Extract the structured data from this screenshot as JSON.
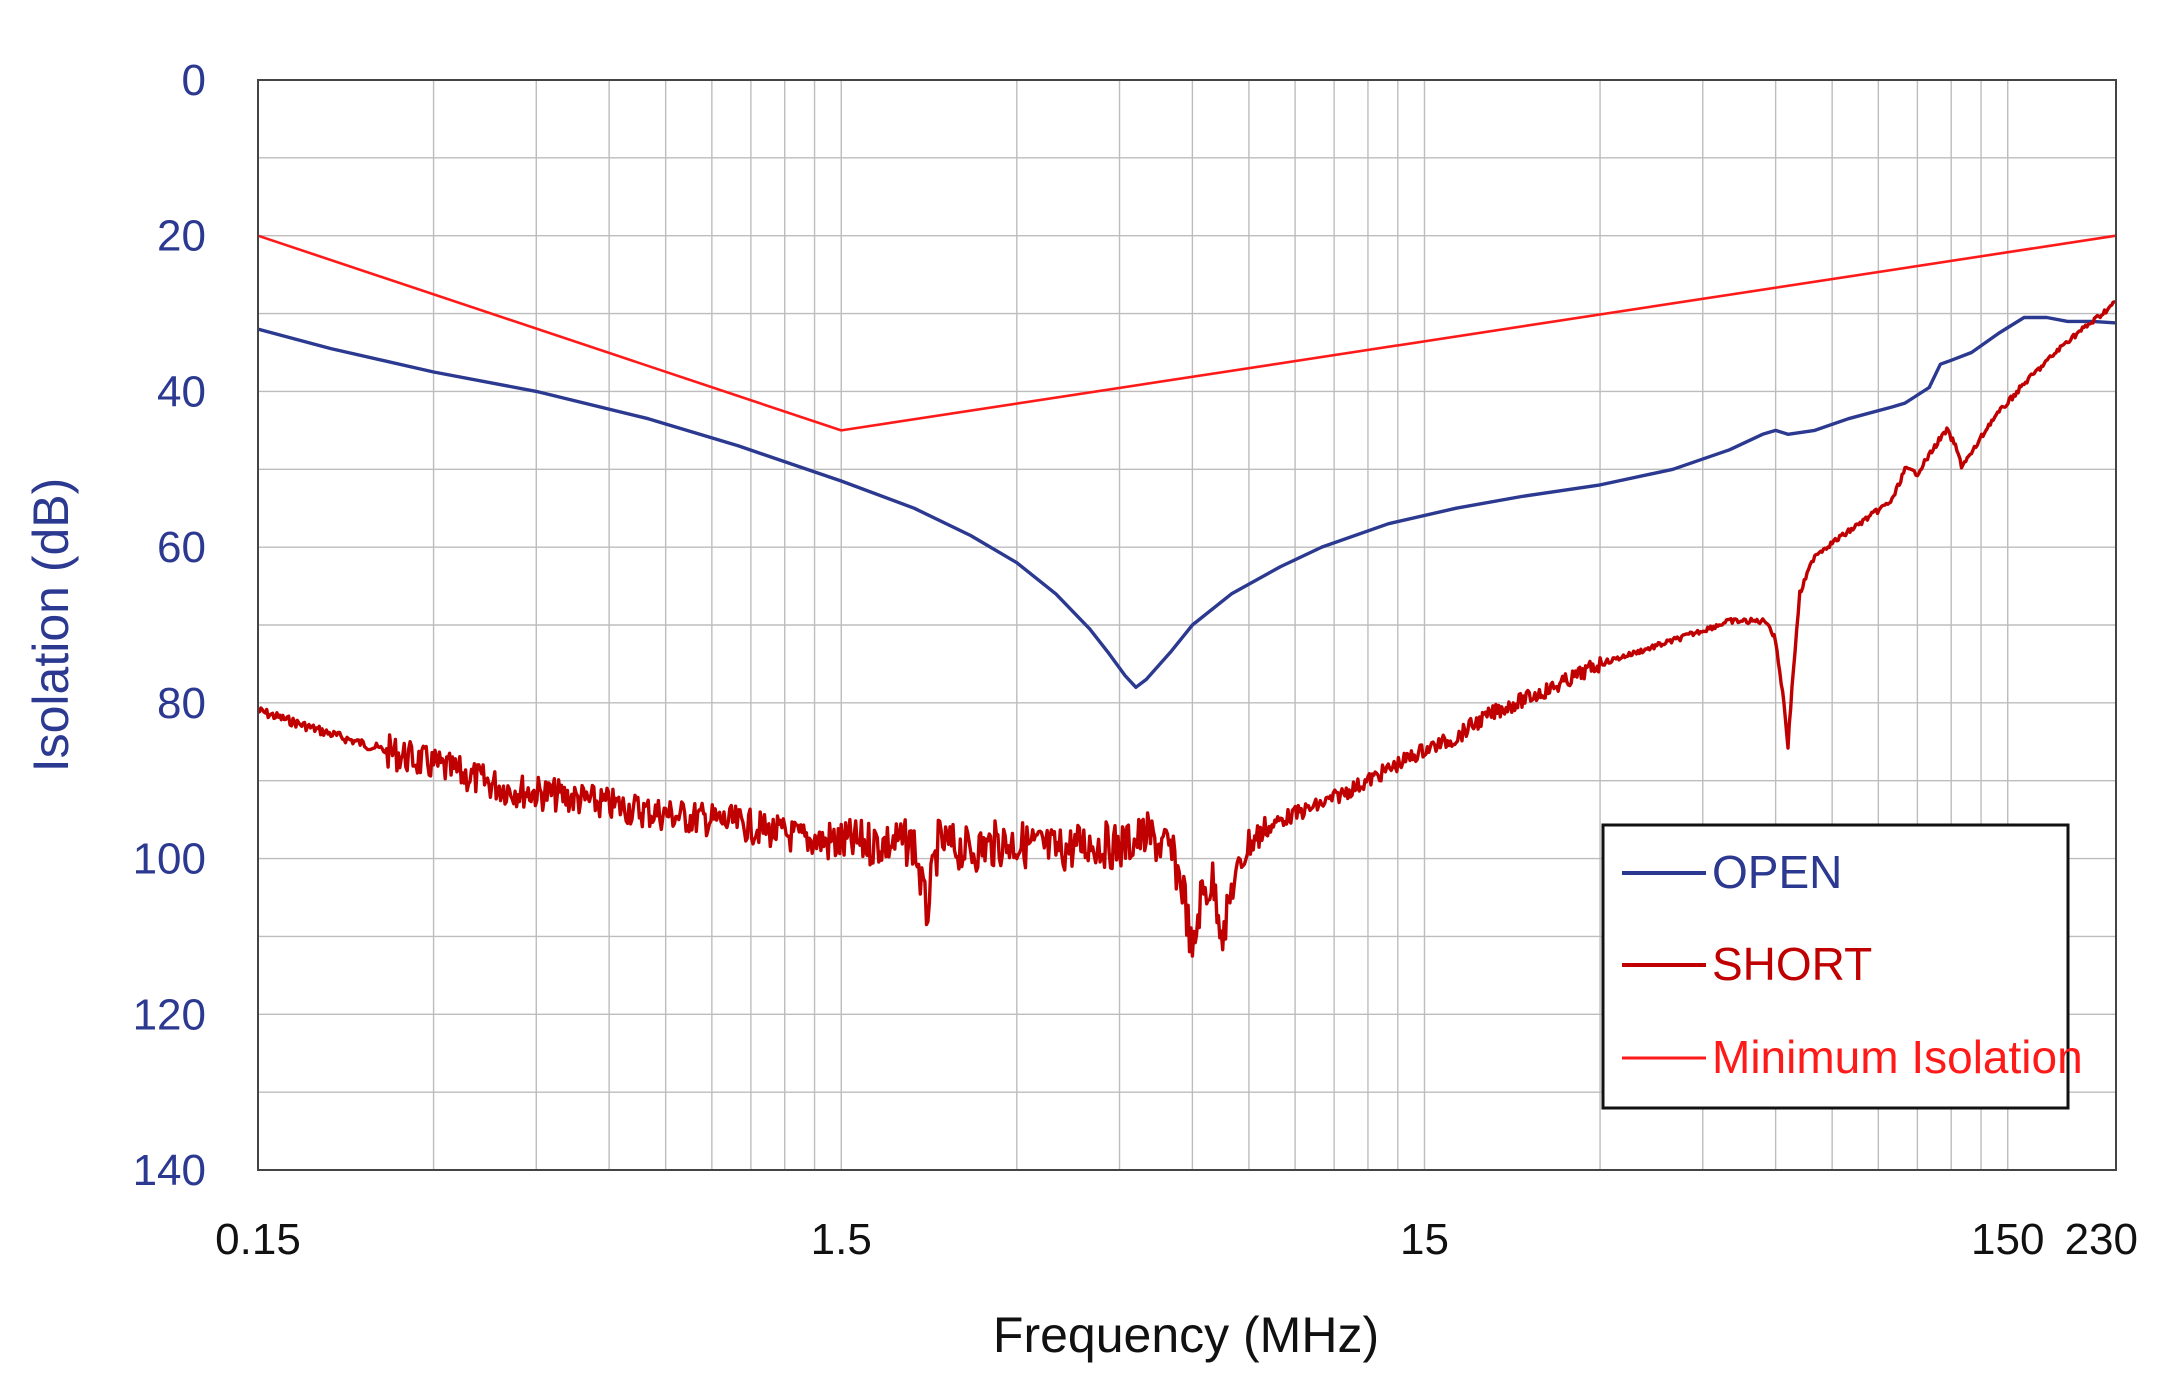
{
  "chart_data": {
    "type": "line",
    "title": "",
    "xlabel": "Frequency (MHz)",
    "ylabel": "Isolation (dB)",
    "x_scale": "log",
    "xlim": [
      0.15,
      230
    ],
    "ylim": [
      0,
      140
    ],
    "y_inverted": true,
    "grid": true,
    "legend_position": "bottom-right",
    "x_ticks": [
      0.15,
      1.5,
      15,
      150,
      230
    ],
    "x_tick_labels": [
      "0.15",
      "1.5",
      "15",
      "150",
      "230"
    ],
    "y_ticks": [
      0,
      20,
      40,
      60,
      80,
      100,
      120,
      140
    ],
    "y_tick_labels": [
      "0",
      "20",
      "40",
      "60",
      "80",
      "100",
      "120",
      "140"
    ],
    "series": [
      {
        "name": "OPEN",
        "color": "#2b3990",
        "points": [
          [
            0.15,
            32
          ],
          [
            0.2,
            34.5
          ],
          [
            0.3,
            37.5
          ],
          [
            0.45,
            40
          ],
          [
            0.7,
            43.5
          ],
          [
            1.0,
            47
          ],
          [
            1.5,
            51.5
          ],
          [
            2.0,
            55
          ],
          [
            2.5,
            58.5
          ],
          [
            3.0,
            62
          ],
          [
            3.5,
            66
          ],
          [
            4.0,
            70.5
          ],
          [
            4.3,
            73.5
          ],
          [
            4.6,
            76.5
          ],
          [
            4.8,
            78
          ],
          [
            5.0,
            77
          ],
          [
            5.5,
            73.5
          ],
          [
            6.0,
            70
          ],
          [
            7.0,
            66
          ],
          [
            8.5,
            62.5
          ],
          [
            10,
            60
          ],
          [
            13,
            57
          ],
          [
            17,
            55
          ],
          [
            22,
            53.5
          ],
          [
            30,
            52
          ],
          [
            40,
            50
          ],
          [
            50,
            47.5
          ],
          [
            57,
            45.5
          ],
          [
            60,
            45
          ],
          [
            63,
            45.5
          ],
          [
            70,
            45
          ],
          [
            80,
            43.5
          ],
          [
            95,
            42
          ],
          [
            100,
            41.5
          ],
          [
            110,
            39.5
          ],
          [
            115,
            36.5
          ],
          [
            120,
            36
          ],
          [
            130,
            35
          ],
          [
            145,
            32.5
          ],
          [
            160,
            30.5
          ],
          [
            175,
            30.5
          ],
          [
            190,
            31
          ],
          [
            210,
            31
          ],
          [
            230,
            31.2
          ]
        ]
      },
      {
        "name": "SHORT",
        "color": "#c00000",
        "points": [
          [
            0.15,
            81
          ],
          [
            0.2,
            84
          ],
          [
            0.3,
            88
          ],
          [
            0.4,
            91
          ],
          [
            0.5,
            92
          ],
          [
            0.7,
            94
          ],
          [
            1.0,
            95.5
          ],
          [
            1.3,
            97.5
          ],
          [
            1.5,
            98
          ],
          [
            1.8,
            98
          ],
          [
            2.0,
            98
          ],
          [
            2.1,
            107
          ],
          [
            2.2,
            98
          ],
          [
            2.5,
            99
          ],
          [
            2.8,
            98
          ],
          [
            3.0,
            98
          ],
          [
            3.5,
            99
          ],
          [
            4.0,
            98
          ],
          [
            4.5,
            98.5
          ],
          [
            5.0,
            97
          ],
          [
            5.5,
            99
          ],
          [
            5.8,
            104
          ],
          [
            6.0,
            113
          ],
          [
            6.2,
            105
          ],
          [
            6.5,
            103
          ],
          [
            6.8,
            110
          ],
          [
            7.0,
            104
          ],
          [
            7.5,
            98
          ],
          [
            8.5,
            95
          ],
          [
            10,
            93
          ],
          [
            12,
            90
          ],
          [
            15,
            86
          ],
          [
            17,
            84.5
          ],
          [
            18,
            83
          ],
          [
            20,
            81
          ],
          [
            25,
            78
          ],
          [
            30,
            75
          ],
          [
            40,
            72
          ],
          [
            50,
            69.5
          ],
          [
            58,
            69.5
          ],
          [
            60,
            72
          ],
          [
            62,
            80
          ],
          [
            63,
            85.5
          ],
          [
            64,
            78
          ],
          [
            66,
            66
          ],
          [
            70,
            61
          ],
          [
            80,
            58
          ],
          [
            95,
            54
          ],
          [
            100,
            50
          ],
          [
            105,
            50.5
          ],
          [
            115,
            46
          ],
          [
            118,
            45
          ],
          [
            122,
            47
          ],
          [
            125,
            49.5
          ],
          [
            130,
            48
          ],
          [
            140,
            44
          ],
          [
            160,
            39
          ],
          [
            190,
            33.5
          ],
          [
            210,
            31
          ],
          [
            230,
            28.5
          ]
        ]
      },
      {
        "name": "Minimum Isolation",
        "color": "#ff1a1a",
        "points": [
          [
            0.15,
            20
          ],
          [
            1.5,
            45
          ],
          [
            230,
            20
          ]
        ]
      }
    ]
  },
  "legend": {
    "items": [
      {
        "label": "OPEN",
        "color": "#2b3990"
      },
      {
        "label": "SHORT",
        "color": "#c00000"
      },
      {
        "label": "Minimum Isolation",
        "color": "#ff1a1a"
      }
    ]
  }
}
